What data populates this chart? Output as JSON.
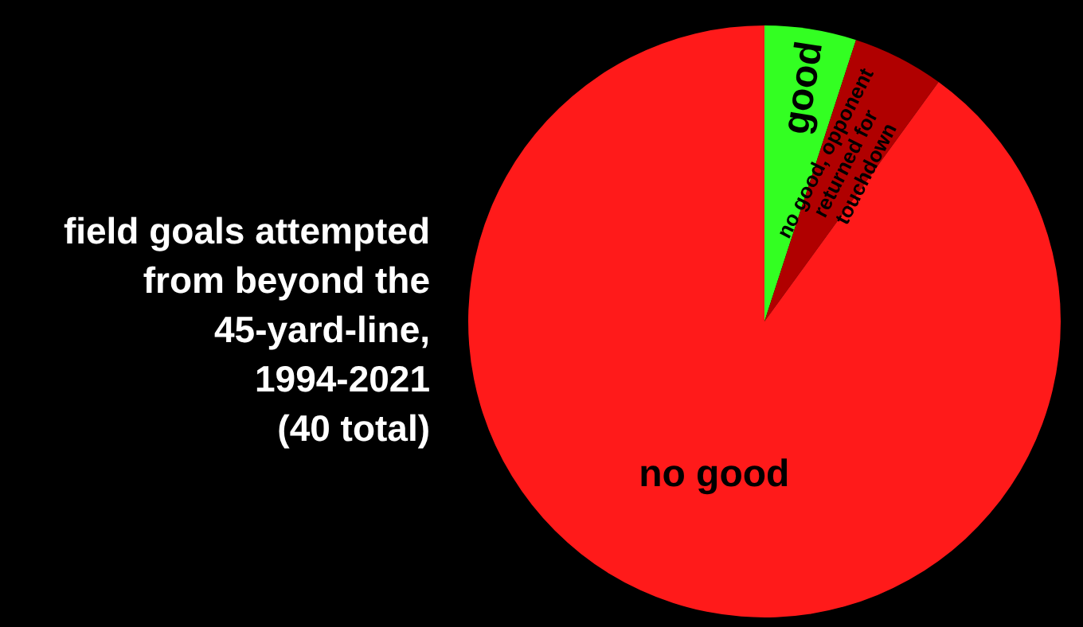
{
  "chart_data": {
    "type": "pie",
    "title": "field goals attempted\nfrom beyond the\n45-yard-line,\n1994-2021\n(40 total)",
    "categories": [
      "good",
      "no good, opponent returned for touchdown",
      "no good"
    ],
    "values": [
      5,
      5,
      90
    ],
    "colors": [
      "#33ff22",
      "#b00000",
      "#ff1a1a"
    ],
    "legend": false
  }
}
